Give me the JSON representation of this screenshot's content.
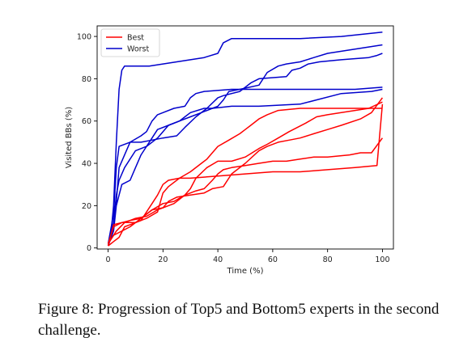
{
  "chart_data": {
    "type": "line",
    "xlabel": "Time (%)",
    "ylabel": "Visited BBs (%)",
    "xlim": [
      -4,
      104
    ],
    "ylim": [
      -0.5,
      105
    ],
    "xticks": [
      0,
      20,
      40,
      60,
      80,
      100
    ],
    "yticks": [
      0,
      20,
      40,
      60,
      80,
      100
    ],
    "grid": false,
    "legend_placement": "top-left",
    "legend": [
      {
        "label": "Best",
        "color": "#ff0000"
      },
      {
        "label": "Worst",
        "color": "#0000cc"
      }
    ],
    "series": [
      {
        "group": "Worst",
        "color": "#0000cc",
        "points": [
          [
            0,
            1
          ],
          [
            1,
            6
          ],
          [
            2,
            20
          ],
          [
            3,
            50
          ],
          [
            4,
            75
          ],
          [
            5,
            84
          ],
          [
            6,
            86
          ],
          [
            15,
            86
          ],
          [
            25,
            88
          ],
          [
            35,
            90
          ],
          [
            40,
            92
          ],
          [
            42,
            97
          ],
          [
            45,
            99
          ],
          [
            55,
            99
          ],
          [
            70,
            99
          ],
          [
            85,
            100
          ],
          [
            100,
            102
          ]
        ]
      },
      {
        "group": "Worst",
        "color": "#0000cc",
        "points": [
          [
            0,
            2
          ],
          [
            2,
            16
          ],
          [
            3,
            38
          ],
          [
            4,
            48
          ],
          [
            8,
            50
          ],
          [
            12,
            53
          ],
          [
            14,
            55
          ],
          [
            16,
            60
          ],
          [
            18,
            63
          ],
          [
            20,
            64
          ],
          [
            24,
            66
          ],
          [
            28,
            67
          ],
          [
            30,
            71
          ],
          [
            32,
            73
          ],
          [
            35,
            74
          ],
          [
            45,
            75
          ],
          [
            60,
            75
          ],
          [
            80,
            75
          ],
          [
            90,
            75
          ],
          [
            100,
            76
          ]
        ]
      },
      {
        "group": "Worst",
        "color": "#0000cc",
        "points": [
          [
            0,
            1
          ],
          [
            2,
            10
          ],
          [
            3,
            22
          ],
          [
            4,
            38
          ],
          [
            6,
            44
          ],
          [
            8,
            50
          ],
          [
            12,
            50
          ],
          [
            16,
            51
          ],
          [
            20,
            52
          ],
          [
            25,
            53
          ],
          [
            28,
            57
          ],
          [
            32,
            62
          ],
          [
            36,
            66
          ],
          [
            40,
            71
          ],
          [
            42,
            72
          ],
          [
            48,
            74
          ],
          [
            50,
            76
          ],
          [
            52,
            78
          ],
          [
            55,
            80
          ],
          [
            65,
            81
          ],
          [
            67,
            84
          ],
          [
            70,
            85
          ],
          [
            73,
            87
          ],
          [
            77,
            88
          ],
          [
            85,
            89
          ],
          [
            95,
            90
          ],
          [
            98,
            91
          ],
          [
            100,
            92
          ]
        ]
      },
      {
        "group": "Worst",
        "color": "#0000cc",
        "points": [
          [
            0,
            2
          ],
          [
            2,
            12
          ],
          [
            3,
            25
          ],
          [
            4,
            32
          ],
          [
            6,
            38
          ],
          [
            10,
            46
          ],
          [
            14,
            48
          ],
          [
            18,
            52
          ],
          [
            22,
            58
          ],
          [
            26,
            60
          ],
          [
            28,
            62
          ],
          [
            30,
            64
          ],
          [
            35,
            66
          ],
          [
            38,
            66
          ],
          [
            40,
            67
          ],
          [
            42,
            70
          ],
          [
            44,
            74
          ],
          [
            48,
            75
          ],
          [
            55,
            77
          ],
          [
            58,
            83
          ],
          [
            62,
            86
          ],
          [
            65,
            87
          ],
          [
            70,
            88
          ],
          [
            75,
            90
          ],
          [
            80,
            92
          ],
          [
            100,
            96
          ]
        ]
      },
      {
        "group": "Worst",
        "color": "#0000cc",
        "points": [
          [
            0,
            1
          ],
          [
            2,
            8
          ],
          [
            3,
            20
          ],
          [
            5,
            30
          ],
          [
            8,
            32
          ],
          [
            10,
            38
          ],
          [
            12,
            44
          ],
          [
            14,
            48
          ],
          [
            16,
            52
          ],
          [
            18,
            56
          ],
          [
            22,
            58
          ],
          [
            26,
            60
          ],
          [
            30,
            62
          ],
          [
            34,
            64
          ],
          [
            38,
            66
          ],
          [
            45,
            67
          ],
          [
            55,
            67
          ],
          [
            70,
            68
          ],
          [
            85,
            73
          ],
          [
            96,
            74
          ],
          [
            100,
            75
          ]
        ]
      },
      {
        "group": "Best",
        "color": "#ff0000",
        "points": [
          [
            0,
            1
          ],
          [
            2,
            3
          ],
          [
            4,
            5
          ],
          [
            6,
            10
          ],
          [
            8,
            11
          ],
          [
            10,
            12
          ],
          [
            12,
            13
          ],
          [
            14,
            17
          ],
          [
            16,
            21
          ],
          [
            18,
            25
          ],
          [
            20,
            30
          ],
          [
            22,
            32
          ],
          [
            26,
            33
          ],
          [
            30,
            33
          ],
          [
            40,
            34
          ],
          [
            50,
            35
          ],
          [
            60,
            36
          ],
          [
            70,
            36
          ],
          [
            80,
            37
          ],
          [
            90,
            38
          ],
          [
            98,
            39
          ],
          [
            100,
            68
          ]
        ]
      },
      {
        "group": "Best",
        "color": "#ff0000",
        "points": [
          [
            0,
            1
          ],
          [
            2,
            11
          ],
          [
            5,
            12
          ],
          [
            10,
            12
          ],
          [
            14,
            14
          ],
          [
            18,
            17
          ],
          [
            20,
            26
          ],
          [
            22,
            29
          ],
          [
            26,
            33
          ],
          [
            30,
            36
          ],
          [
            34,
            40
          ],
          [
            36,
            42
          ],
          [
            40,
            48
          ],
          [
            44,
            51
          ],
          [
            48,
            54
          ],
          [
            50,
            56
          ],
          [
            52,
            58
          ],
          [
            55,
            61
          ],
          [
            58,
            63
          ],
          [
            62,
            65
          ],
          [
            70,
            66
          ],
          [
            85,
            66
          ],
          [
            100,
            66
          ]
        ]
      },
      {
        "group": "Best",
        "color": "#ff0000",
        "points": [
          [
            0,
            2
          ],
          [
            2,
            6
          ],
          [
            5,
            8
          ],
          [
            8,
            10
          ],
          [
            12,
            14
          ],
          [
            16,
            18
          ],
          [
            20,
            19
          ],
          [
            22,
            22
          ],
          [
            25,
            24
          ],
          [
            30,
            25
          ],
          [
            35,
            26
          ],
          [
            38,
            28
          ],
          [
            42,
            29
          ],
          [
            45,
            35
          ],
          [
            50,
            40
          ],
          [
            55,
            46
          ],
          [
            58,
            48
          ],
          [
            62,
            50
          ],
          [
            66,
            51
          ],
          [
            70,
            52
          ],
          [
            75,
            54
          ],
          [
            80,
            56
          ],
          [
            85,
            58
          ],
          [
            92,
            61
          ],
          [
            96,
            64
          ],
          [
            100,
            71
          ]
        ]
      },
      {
        "group": "Best",
        "color": "#ff0000",
        "points": [
          [
            0,
            2
          ],
          [
            2,
            10
          ],
          [
            5,
            12
          ],
          [
            8,
            13
          ],
          [
            12,
            14
          ],
          [
            16,
            18
          ],
          [
            20,
            21
          ],
          [
            24,
            22
          ],
          [
            28,
            25
          ],
          [
            30,
            28
          ],
          [
            32,
            33
          ],
          [
            36,
            38
          ],
          [
            40,
            41
          ],
          [
            45,
            41
          ],
          [
            50,
            43
          ],
          [
            55,
            47
          ],
          [
            58,
            49
          ],
          [
            62,
            52
          ],
          [
            66,
            55
          ],
          [
            72,
            59
          ],
          [
            76,
            62
          ],
          [
            80,
            63
          ],
          [
            85,
            64
          ],
          [
            90,
            65
          ],
          [
            95,
            66
          ],
          [
            100,
            69
          ]
        ]
      },
      {
        "group": "Best",
        "color": "#ff0000",
        "points": [
          [
            0,
            2
          ],
          [
            3,
            8
          ],
          [
            6,
            12
          ],
          [
            10,
            14
          ],
          [
            14,
            15
          ],
          [
            18,
            18
          ],
          [
            20,
            19
          ],
          [
            24,
            21
          ],
          [
            28,
            25
          ],
          [
            32,
            27
          ],
          [
            35,
            28
          ],
          [
            38,
            32
          ],
          [
            40,
            35
          ],
          [
            42,
            37
          ],
          [
            45,
            38
          ],
          [
            50,
            39
          ],
          [
            55,
            40
          ],
          [
            60,
            41
          ],
          [
            65,
            41
          ],
          [
            70,
            42
          ],
          [
            75,
            43
          ],
          [
            80,
            43
          ],
          [
            88,
            44
          ],
          [
            92,
            45
          ],
          [
            96,
            45
          ],
          [
            100,
            52
          ]
        ]
      }
    ]
  },
  "caption": "Figure 8: Progression of Top5 and Bottom5 experts in the second challenge."
}
